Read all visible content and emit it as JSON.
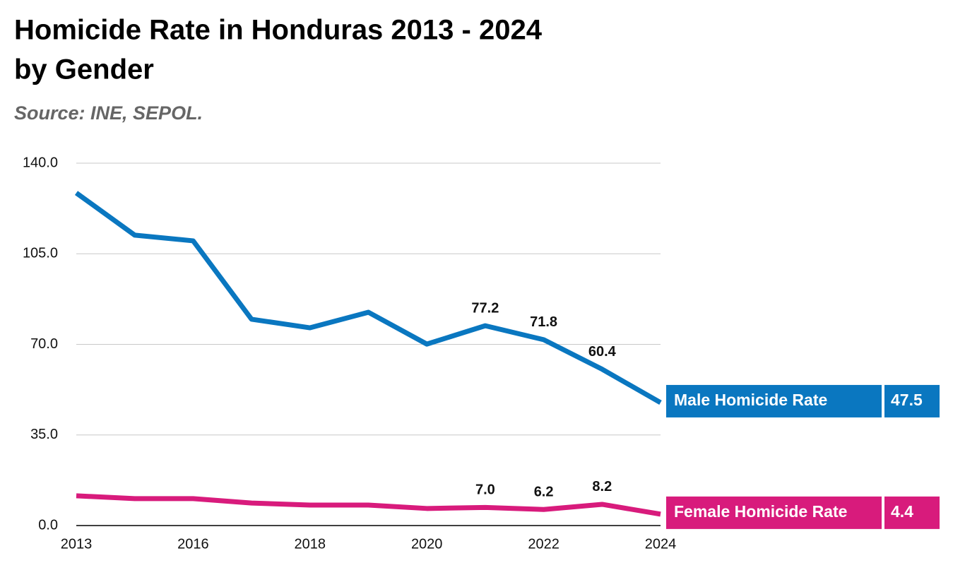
{
  "chart_data": {
    "type": "line",
    "title": [
      "Homicide Rate in Honduras 2013 - 2024",
      "by Gender"
    ],
    "subtitle": "Source: INE, SEPOL.",
    "categories": [
      "2013",
      null,
      "2016",
      null,
      "2018",
      null,
      "2020",
      null,
      "2022",
      null,
      "2024"
    ],
    "series": [
      {
        "name": "Male Homicide Rate",
        "color": "#0a77c0",
        "values": [
          128.5,
          112.2,
          110.0,
          79.7,
          76.4,
          82.4,
          70.1,
          77.2,
          71.8,
          60.4,
          47.5
        ],
        "value_labels": [
          null,
          null,
          null,
          null,
          null,
          null,
          null,
          "77.2",
          "71.8",
          "60.4",
          "47.5"
        ]
      },
      {
        "name": "Female Homicide Rate",
        "color": "#d81b7c",
        "values": [
          11.5,
          10.4,
          10.4,
          8.7,
          7.9,
          7.9,
          6.6,
          7.0,
          6.2,
          8.2,
          4.4
        ],
        "value_labels": [
          null,
          null,
          null,
          null,
          null,
          null,
          null,
          "7.0",
          "6.2",
          "8.2",
          "4.4"
        ]
      }
    ],
    "ylim": [
      0,
      140
    ],
    "yticks": [
      {
        "value": 0,
        "label": "0.0"
      },
      {
        "value": 35,
        "label": "35.0"
      },
      {
        "value": 70,
        "label": "70.0"
      },
      {
        "value": 105,
        "label": "105.0"
      },
      {
        "value": 140,
        "label": "140.0"
      }
    ],
    "grid": true
  }
}
